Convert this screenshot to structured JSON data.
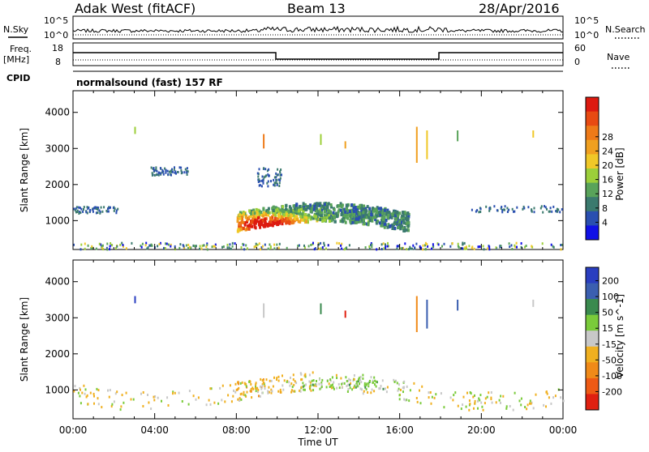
{
  "header": {
    "station": "Adak West (fitACF)",
    "beam": "Beam 13",
    "date": "28/Apr/2016"
  },
  "noise_panel": {
    "left_label": "N.Sky",
    "right_label": "N.Search",
    "tick_top": "10^5",
    "tick_bottom": "10^0"
  },
  "freq_panel": {
    "left_label_1": "Freq.",
    "left_label_2": "[MHz]",
    "left_ticks": [
      "18",
      "8"
    ],
    "right_label": "Nave",
    "right_ticks": [
      "60",
      "0"
    ]
  },
  "cpid": {
    "label": "CPID",
    "text": "normalsound (fast) 157 RF"
  },
  "chart_data": [
    {
      "type": "heatmap",
      "name": "power-panel",
      "ylabel": "Slant Range [km]",
      "yticks": [
        "1000",
        "2000",
        "3000",
        "4000"
      ],
      "ylim": [
        200,
        4600
      ],
      "xlim": [
        0,
        24
      ],
      "colorbar": {
        "label": "Power [dB]",
        "ticks": [
          "4",
          "8",
          "12",
          "16",
          "20",
          "24",
          "28"
        ],
        "colors": [
          "#1010e6",
          "#2a4fb0",
          "#3b7a6e",
          "#59a35a",
          "#9ccf3a",
          "#f0c828",
          "#f0a020",
          "#ee7a18",
          "#e84a12",
          "#dd1a10"
        ]
      },
      "echo_regions": [
        {
          "t0": 8.0,
          "t1": 16.4,
          "r0": 700,
          "r1": 1450,
          "level": "strong"
        },
        {
          "t0": 0.0,
          "t1": 2.2,
          "r0": 1200,
          "r1": 1380,
          "level": "weak"
        },
        {
          "t0": 19.5,
          "t1": 24.0,
          "r0": 1230,
          "r1": 1400,
          "level": "weak"
        },
        {
          "t0": 3.8,
          "t1": 5.6,
          "r0": 2250,
          "r1": 2480,
          "level": "weak"
        },
        {
          "t0": 9.0,
          "t1": 10.2,
          "r0": 1950,
          "r1": 2450,
          "level": "weak"
        },
        {
          "t0": 0.0,
          "t1": 24.0,
          "r0": 200,
          "r1": 380,
          "level": "ground"
        }
      ]
    },
    {
      "type": "heatmap",
      "name": "velocity-panel",
      "ylabel": "Slant Range [km]",
      "yticks": [
        "1000",
        "2000",
        "3000",
        "4000"
      ],
      "ylim": [
        200,
        4600
      ],
      "xlim": [
        0,
        24
      ],
      "xticks": [
        "00:00",
        "04:00",
        "08:00",
        "12:00",
        "16:00",
        "20:00",
        "00:00"
      ],
      "xlabel": "Time UT",
      "colorbar": {
        "label": "Velocity [m s^-1]",
        "ticks": [
          "200",
          "100",
          "50",
          "15",
          "-15",
          "-50",
          "-100",
          "-200"
        ],
        "colors": [
          "#2a3ec0",
          "#3b5fb0",
          "#3a8a4e",
          "#7acb3a",
          "#c8c8c8",
          "#f0b020",
          "#f08a18",
          "#ee5a14",
          "#e02010"
        ]
      },
      "echo_regions": [
        {
          "t0": 8.0,
          "t1": 10.3,
          "r0": 700,
          "r1": 1500,
          "velocity": "-50"
        },
        {
          "t0": 10.3,
          "t1": 16.4,
          "r0": 750,
          "r1": 1350,
          "velocity": "15"
        },
        {
          "t0": 11.0,
          "t1": 15.2,
          "r0": 1000,
          "r1": 1300,
          "velocity": "50"
        },
        {
          "t0": 0.0,
          "t1": 24.0,
          "r0": 200,
          "r1": 380,
          "velocity": "-15"
        }
      ]
    }
  ]
}
